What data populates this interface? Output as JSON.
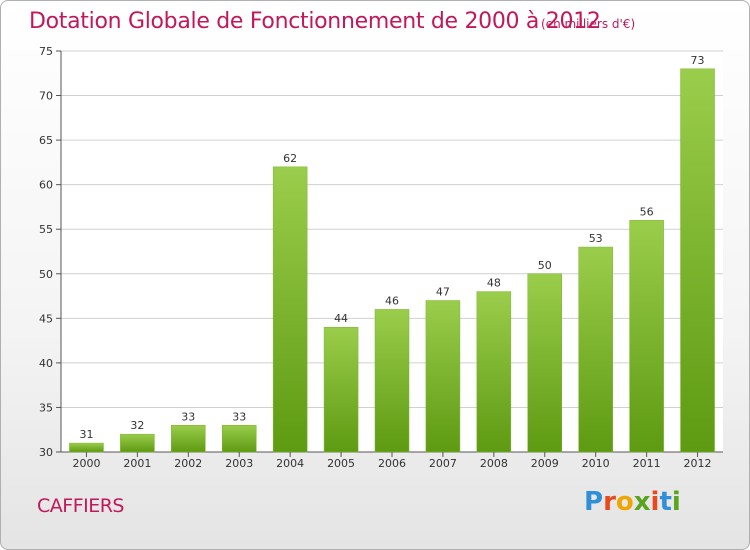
{
  "header": {
    "title": "Dotation Globale de Fonctionnement de 2000 à 2012",
    "subtitle": "(en milliers d'€)"
  },
  "footer": {
    "commune": "CAFFIERS",
    "logo": "Proxiti"
  },
  "colors": {
    "title": "#c2185b",
    "bar_light": "#9acd4b",
    "bar_dark": "#5e9a12",
    "grid": "#d0d0d0"
  },
  "chart_data": {
    "type": "bar",
    "title": "Dotation Globale de Fonctionnement de 2000 à 2012",
    "subtitle": "(en milliers d'€)",
    "xlabel": "",
    "ylabel": "",
    "categories": [
      "2000",
      "2001",
      "2002",
      "2003",
      "2004",
      "2005",
      "2006",
      "2007",
      "2008",
      "2009",
      "2010",
      "2011",
      "2012"
    ],
    "values": [
      31,
      32,
      33,
      33,
      62,
      44,
      46,
      47,
      48,
      50,
      53,
      56,
      73
    ],
    "ylim": [
      30,
      75
    ],
    "yticks": [
      30,
      35,
      40,
      45,
      50,
      55,
      60,
      65,
      70,
      75
    ],
    "grid": true,
    "legend": "none"
  }
}
